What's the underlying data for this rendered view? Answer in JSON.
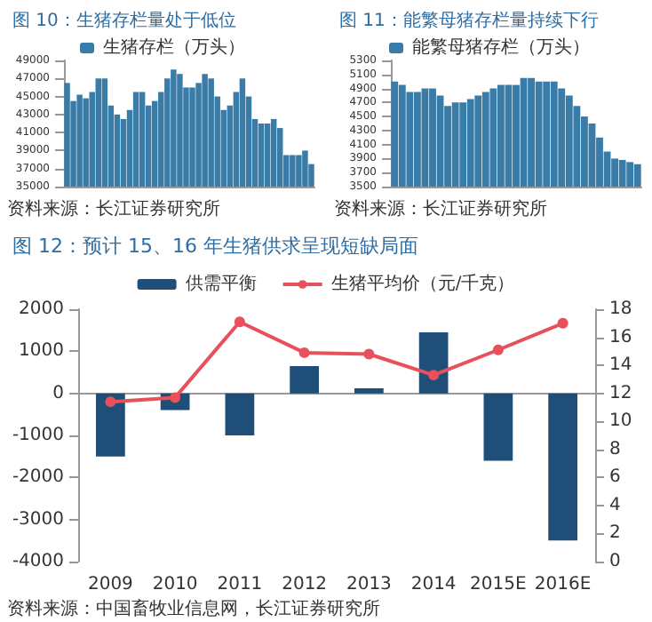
{
  "chart_data": [
    {
      "type": "bar",
      "title": "图 10：生猪存栏量处于低位",
      "annotations": [
        "资料来源：长江证券研究所"
      ],
      "legend": "top",
      "tick_labels": "y",
      "categories": [
        null,
        null,
        null,
        null,
        null,
        null,
        null,
        null,
        null,
        null,
        null,
        null,
        null,
        null,
        null,
        null,
        null,
        null,
        null,
        null,
        null,
        null,
        null,
        null,
        null,
        null,
        null,
        null,
        null,
        null,
        null,
        null,
        null,
        null,
        null,
        null,
        null,
        null,
        null,
        null
      ],
      "series": [
        {
          "name": "生猪存栏（万头）",
          "color": "#3a7ca8",
          "values": [
            46500,
            44500,
            45200,
            44800,
            45500,
            47000,
            47000,
            44000,
            43000,
            42500,
            43500,
            45500,
            45500,
            44000,
            44500,
            45500,
            47000,
            48000,
            47500,
            46000,
            46000,
            46500,
            47500,
            47000,
            45000,
            43500,
            44000,
            45500,
            47000,
            45000,
            42500,
            42000,
            42000,
            42500,
            41500,
            38500,
            38500,
            38500,
            39000,
            37500
          ]
        }
      ],
      "ylim": [
        35000,
        49000
      ],
      "yticks": [
        35000,
        37000,
        39000,
        41000,
        43000,
        45000,
        47000,
        49000
      ]
    },
    {
      "type": "bar",
      "title": "图 11：能繁母猪存栏量持续下行",
      "annotations": [
        "资料来源：长江证券研究所"
      ],
      "legend": "top",
      "tick_labels": "y",
      "categories": [
        null,
        null,
        null,
        null,
        null,
        null,
        null,
        null,
        null,
        null,
        null,
        null,
        null,
        null,
        null,
        null,
        null,
        null,
        null,
        null,
        null,
        null,
        null,
        null,
        null,
        null,
        null,
        null,
        null,
        null,
        null,
        null,
        null
      ],
      "series": [
        {
          "name": "能繁母猪存栏（万头）",
          "color": "#3a7ca8",
          "values": [
            5000,
            4950,
            4850,
            4850,
            4900,
            4900,
            4800,
            4650,
            4700,
            4700,
            4750,
            4800,
            4850,
            4900,
            4950,
            4950,
            4950,
            5050,
            5050,
            5000,
            5000,
            5000,
            4900,
            4800,
            4650,
            4500,
            4400,
            4200,
            4000,
            3900,
            3880,
            3850,
            3820
          ]
        }
      ],
      "ylim": [
        3500,
        5300
      ],
      "yticks": [
        3500,
        3700,
        3900,
        4100,
        4300,
        4500,
        4700,
        4900,
        5100,
        5300
      ]
    },
    {
      "type": "bar",
      "title": "图 12：预计 15、16 年生猪供求呈现短缺局面",
      "annotations": [
        "资料来源：中国畜牧业信息网，长江证券研究所"
      ],
      "legend": "top",
      "categories": [
        "2009",
        "2010",
        "2011",
        "2012",
        "2013",
        "2014",
        "2015E",
        "2016E"
      ],
      "series": [
        {
          "name": "供需平衡",
          "color": "#1f4e79",
          "values": [
            -1500,
            -400,
            -1000,
            650,
            120,
            1450,
            -1600,
            -3500
          ]
        },
        {
          "name": "生猪平均价（元/千克）",
          "type": "line",
          "axis": "y2",
          "color": "#e8505b",
          "marker": "circle",
          "values": [
            11.4,
            11.7,
            17.1,
            14.9,
            14.8,
            13.3,
            15.1,
            17.0
          ]
        }
      ],
      "ylim": [
        -4000,
        2000
      ],
      "yticks": [
        -4000,
        -3000,
        -2000,
        -1000,
        0,
        1000,
        2000
      ],
      "y2lim": [
        0,
        18
      ],
      "y2ticks": [
        0,
        2,
        4,
        6,
        8,
        10,
        12,
        14,
        16,
        18
      ]
    }
  ]
}
